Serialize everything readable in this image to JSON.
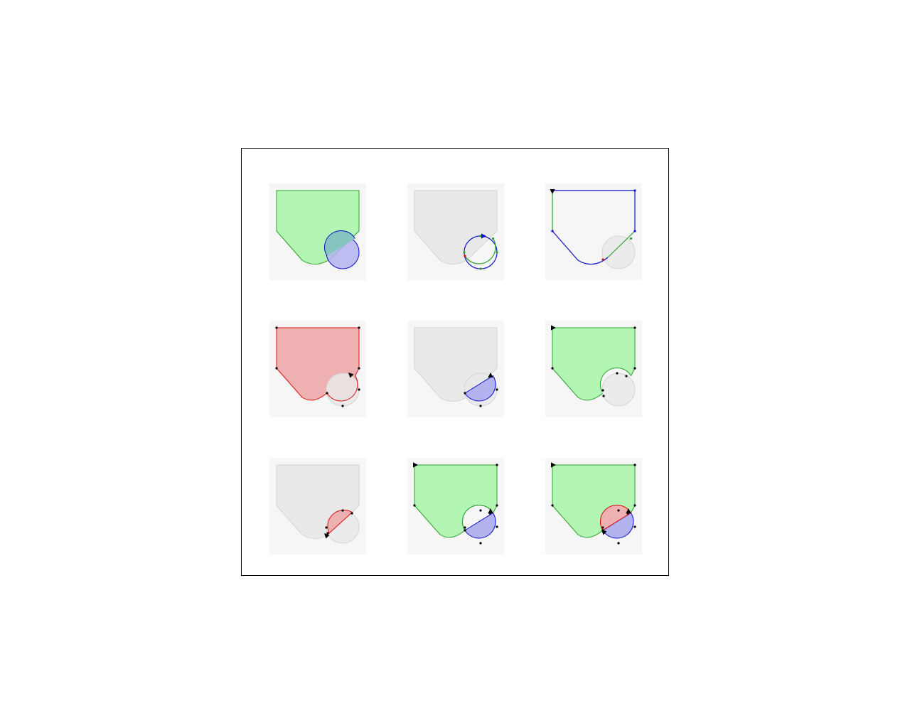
{
  "figure": {
    "colors": {
      "green_fill": "#b3f5b3",
      "green_stroke": "#2e9e2e",
      "blue_fill": "#b3b3f0",
      "blue_stroke": "#1010cc",
      "red_fill": "#eeb0b0",
      "red_stroke": "#dd1111",
      "overlap_fill": "#86c4c0",
      "ghost_fill": "#e9e9e9",
      "ghost_stroke": "#d4d4d4",
      "panel_bg": "#f6f6f6",
      "vertex": "#000000"
    },
    "panels": [
      {
        "id": "subject-and-clip",
        "description": "pentagon-with-curved-side-and-circle"
      },
      {
        "id": "clip-circle-vertices",
        "description": "circle-intersections"
      },
      {
        "id": "subject-outline-vertices",
        "description": "subject-intersections"
      },
      {
        "id": "union",
        "description": "union-red"
      },
      {
        "id": "intersection",
        "description": "intersection-blue"
      },
      {
        "id": "difference-subject-minus-clip",
        "description": "difference-green"
      },
      {
        "id": "difference-clip-minus-subject",
        "description": "difference-red"
      },
      {
        "id": "xor-partition",
        "description": "green-and-blue"
      },
      {
        "id": "full-partition",
        "description": "green-red-blue"
      }
    ]
  }
}
